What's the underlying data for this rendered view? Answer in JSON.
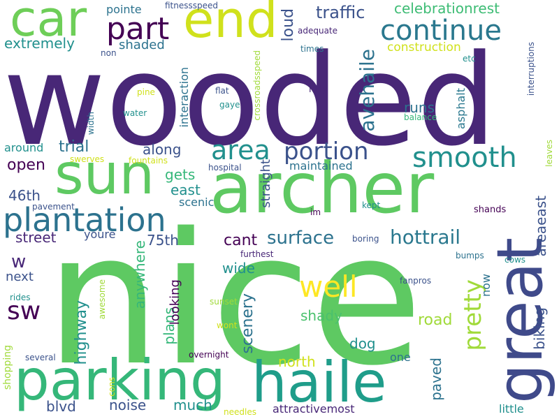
{
  "words": {
    "wooded": "wooded",
    "nice": "nice",
    "archer": "archer",
    "parking": "parking",
    "haile": "haile",
    "great": "great",
    "sun": "sun",
    "car": "car",
    "end": "end",
    "plantation": "plantation",
    "part": "part",
    "continue": "continue",
    "smooth": "smooth",
    "area": "area",
    "portion": "portion",
    "well": "well",
    "pretty": "pretty",
    "sw": "sw",
    "hottrail": "hottrail",
    "surface": "surface",
    "traffic": "traffic",
    "avehaile": "avehaile",
    "extremely": "extremely",
    "shaded": "shaded",
    "loud": "loud",
    "celebrationrest": "celebrationrest",
    "construction": "construction",
    "pointe": "pointe",
    "fitnessspeed": "fitnessspeed",
    "adequate": "adequate",
    "times": "times",
    "non": "non",
    "etc": "etc",
    "interruptions": "interruptions",
    "asphalt": "asphalt",
    "runs": "runs",
    "balance": "balance",
    "hilly": "hilly",
    "crossroadsspeed": "crossroadsspeed",
    "flat": "flat",
    "gaye": "gaye",
    "interaction": "interaction",
    "water": "water",
    "pine": "pine",
    "width": "width",
    "trial": "trial",
    "around": "around",
    "along": "along",
    "maintained": "maintained",
    "open": "open",
    "swerves": "swerves",
    "fountains": "fountains",
    "gets": "gets",
    "hospital": "hospital",
    "east": "east",
    "leaves": "leaves",
    "46th": "46th",
    "scenic": "scenic",
    "straight": "straight",
    "pavement": "pavement",
    "im": "im",
    "kept": "kept",
    "shands": "shands",
    "street": "street",
    "youre": "youre",
    "75th": "75th",
    "cant": "cant",
    "areaeast": "areaeast",
    "w": "w",
    "anywhere": "anywhere",
    "wide": "wide",
    "boring": "boring",
    "furthest": "furthest",
    "bumps": "bumps",
    "cows": "cows",
    "next": "next",
    "rides": "rides",
    "awesome": "awesome",
    "highway": "highway",
    "plans": "plans",
    "looking": "looking",
    "scenery": "scenery",
    "now": "now",
    "fanpros": "fanpros",
    "biking": "biking",
    "sunset": "sunset",
    "shady": "shady",
    "road": "road",
    "wont": "wont",
    "dog": "dog",
    "shopping": "shopping",
    "several": "several",
    "overnight": "overnight",
    "north": "north",
    "one": "one",
    "paved": "paved",
    "cons": "cons",
    "blvd": "blvd",
    "noise": "noise",
    "much": "much",
    "needles": "needles",
    "attractivemost": "attractivemost",
    "little": "little"
  },
  "palette": [
    "#482777",
    "#3f4a8a",
    "#31678e",
    "#26838f",
    "#1f9d8a",
    "#3dbc74",
    "#6ccd5a",
    "#b8de29",
    "#fde725"
  ]
}
